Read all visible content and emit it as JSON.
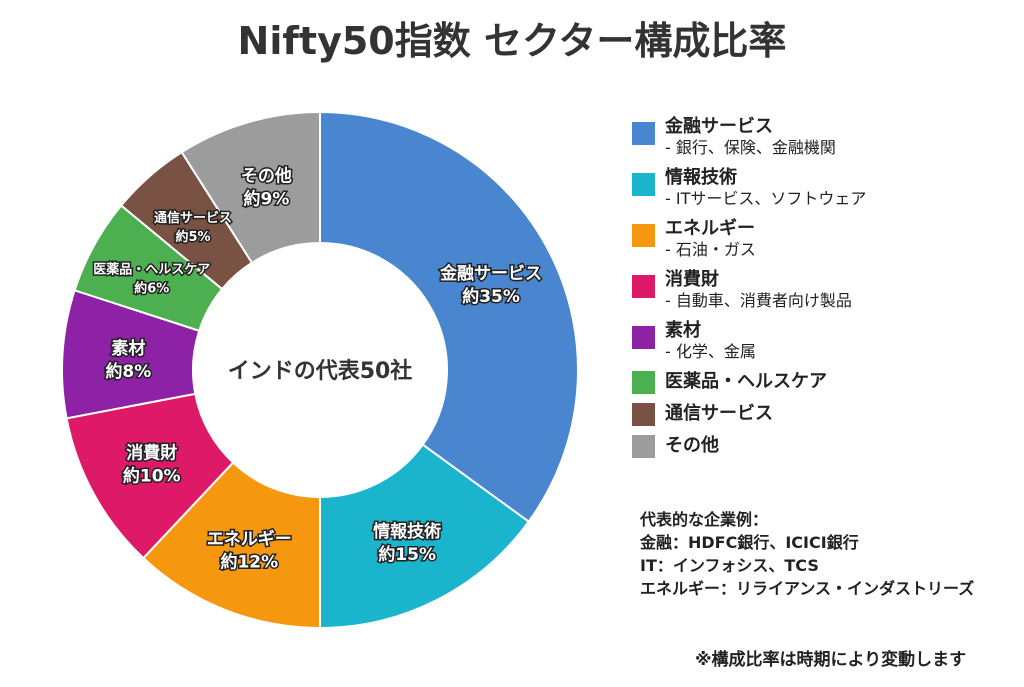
{
  "chart_data": {
    "type": "pie",
    "title": "Nifty50指数 セクター構成比率",
    "center_label": "インドの代表50社",
    "donut": true,
    "start": "top",
    "direction": "clockwise",
    "slices": [
      {
        "name": "金融サービス",
        "label": "約35%",
        "value": 35,
        "color": "#4a86d0",
        "desc": "- 銀行、保険、金融機関"
      },
      {
        "name": "情報技術",
        "label": "約15%",
        "value": 15,
        "color": "#1ab4cc",
        "desc": "- ITサービス、ソフトウェア"
      },
      {
        "name": "エネルギー",
        "label": "約12%",
        "value": 12,
        "color": "#f6980f",
        "desc": "- 石油・ガス"
      },
      {
        "name": "消費財",
        "label": "約10%",
        "value": 10,
        "color": "#de1a68",
        "desc": "- 自動車、消費者向け製品"
      },
      {
        "name": "素材",
        "label": "約8%",
        "value": 8,
        "color": "#8e22a6",
        "desc": "- 化学、金属"
      },
      {
        "name": "医薬品・ヘルスケア",
        "label": "約6%",
        "value": 6,
        "color": "#4caf50",
        "desc": ""
      },
      {
        "name": "通信サービス",
        "label": "約5%",
        "value": 5,
        "color": "#7a5244",
        "desc": ""
      },
      {
        "name": "その他",
        "label": "約9%",
        "value": 9,
        "color": "#9c9c9c",
        "desc": ""
      }
    ],
    "legend_position": "right"
  },
  "examples": {
    "heading": "代表的な企業例：",
    "lines": [
      "金融：HDFC銀行、ICICI銀行",
      "IT：インフォシス、TCS",
      "エネルギー：リライアンス・インダストリーズ"
    ]
  },
  "note": "※構成比率は時期により変動します"
}
